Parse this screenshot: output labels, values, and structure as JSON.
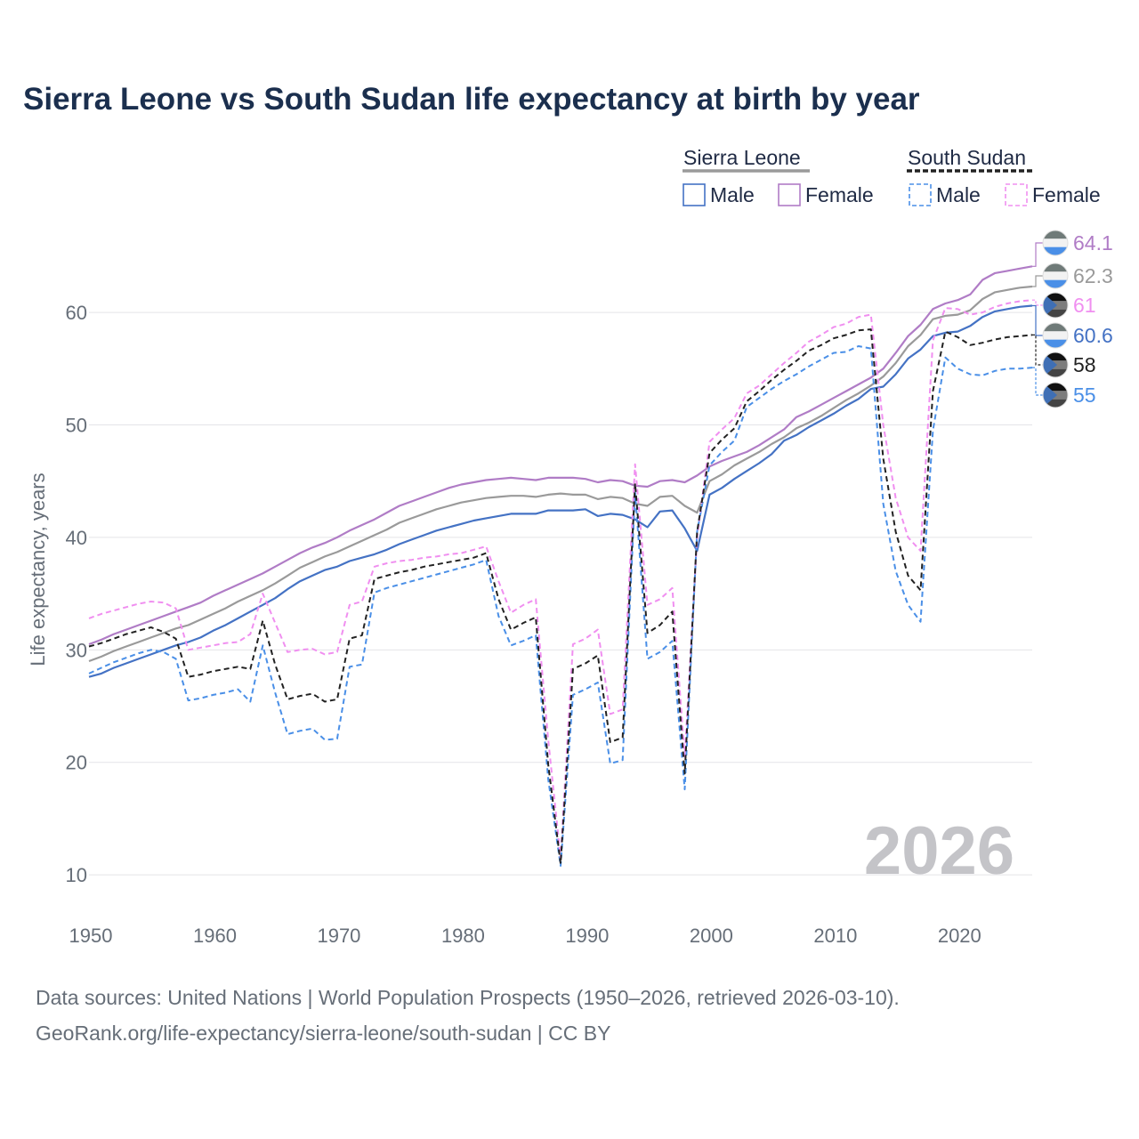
{
  "title": "Sierra Leone vs South Sudan life expectancy at birth by year",
  "footer": {
    "line1": "Data sources: United Nations | World Population Prospects (1950–2026, retrieved 2026-03-10).",
    "line2": "GeoRank.org/life-expectancy/sierra-leone/south-sudan | CC BY"
  },
  "legend": {
    "groups": [
      {
        "country": "Sierra Leone",
        "color": "#9a9a9a",
        "dashed": false,
        "items": [
          {
            "label": "Male",
            "color": "#4472c4"
          },
          {
            "label": "Female",
            "color": "#b07cc6"
          }
        ]
      },
      {
        "country": "South Sudan",
        "color": "#222222",
        "dashed": true,
        "items": [
          {
            "label": "Male",
            "color": "#4a8fe7"
          },
          {
            "label": "Female",
            "color": "#f08ff0"
          }
        ]
      }
    ]
  },
  "chart_data": {
    "type": "line",
    "title": "Sierra Leone vs South Sudan life expectancy at birth by year",
    "xlabel": "",
    "ylabel": "Life expectancy, years",
    "xlim": [
      1950,
      2026
    ],
    "ylim": [
      5.5,
      68
    ],
    "xticks": [
      1950,
      1960,
      1970,
      1980,
      1990,
      2000,
      2010,
      2020
    ],
    "yticks": [
      10,
      20,
      30,
      40,
      50,
      60
    ],
    "watermark": "2026",
    "x": [
      1950,
      1951,
      1952,
      1953,
      1954,
      1955,
      1956,
      1957,
      1958,
      1959,
      1960,
      1961,
      1962,
      1963,
      1964,
      1965,
      1966,
      1967,
      1968,
      1969,
      1970,
      1971,
      1972,
      1973,
      1974,
      1975,
      1976,
      1977,
      1978,
      1979,
      1980,
      1981,
      1982,
      1983,
      1984,
      1985,
      1986,
      1987,
      1988,
      1989,
      1990,
      1991,
      1992,
      1993,
      1994,
      1995,
      1996,
      1997,
      1998,
      1999,
      2000,
      2001,
      2002,
      2003,
      2004,
      2005,
      2006,
      2007,
      2008,
      2009,
      2010,
      2011,
      2012,
      2013,
      2014,
      2015,
      2016,
      2017,
      2018,
      2019,
      2020,
      2021,
      2022,
      2023,
      2024,
      2025,
      2026
    ],
    "series": [
      {
        "name": "Sierra Leone Female",
        "color": "#b07cc6",
        "dashed": false,
        "end_label": "64.1",
        "values": [
          30.5,
          30.9,
          31.4,
          31.8,
          32.2,
          32.6,
          33.0,
          33.4,
          33.8,
          34.2,
          34.8,
          35.3,
          35.8,
          36.3,
          36.8,
          37.4,
          38.0,
          38.6,
          39.1,
          39.5,
          40.0,
          40.6,
          41.1,
          41.6,
          42.2,
          42.8,
          43.2,
          43.6,
          44.0,
          44.4,
          44.7,
          44.9,
          45.1,
          45.2,
          45.3,
          45.2,
          45.1,
          45.3,
          45.3,
          45.3,
          45.2,
          44.9,
          45.1,
          45.0,
          44.6,
          44.5,
          45.0,
          45.1,
          44.9,
          45.5,
          46.3,
          46.8,
          47.2,
          47.6,
          48.2,
          48.9,
          49.6,
          50.7,
          51.2,
          51.8,
          52.4,
          53.0,
          53.6,
          54.2,
          55.0,
          56.4,
          57.9,
          58.9,
          60.3,
          60.8,
          61.1,
          61.6,
          62.9,
          63.5,
          63.7,
          63.9,
          64.1
        ]
      },
      {
        "name": "Sierra Leone Total",
        "color": "#9a9a9a",
        "dashed": false,
        "end_label": "62.3",
        "values": [
          29.0,
          29.4,
          29.9,
          30.3,
          30.7,
          31.1,
          31.5,
          31.9,
          32.2,
          32.7,
          33.2,
          33.7,
          34.3,
          34.8,
          35.3,
          35.9,
          36.6,
          37.3,
          37.8,
          38.3,
          38.7,
          39.2,
          39.7,
          40.2,
          40.7,
          41.3,
          41.7,
          42.1,
          42.5,
          42.8,
          43.1,
          43.3,
          43.5,
          43.6,
          43.7,
          43.7,
          43.6,
          43.8,
          43.9,
          43.8,
          43.8,
          43.4,
          43.6,
          43.5,
          43.0,
          42.8,
          43.6,
          43.7,
          42.8,
          42.2,
          45.0,
          45.6,
          46.4,
          47.0,
          47.6,
          48.3,
          48.9,
          49.7,
          50.2,
          50.8,
          51.5,
          52.2,
          52.8,
          53.5,
          54.3,
          55.5,
          57.0,
          58.0,
          59.4,
          59.7,
          59.8,
          60.2,
          61.2,
          61.8,
          62.0,
          62.2,
          62.3
        ]
      },
      {
        "name": "Sierra Leone Male",
        "color": "#4472c4",
        "dashed": false,
        "end_label": "60.6",
        "values": [
          27.6,
          27.9,
          28.4,
          28.8,
          29.2,
          29.6,
          30.0,
          30.4,
          30.7,
          31.1,
          31.7,
          32.2,
          32.8,
          33.4,
          34.0,
          34.6,
          35.4,
          36.1,
          36.6,
          37.1,
          37.4,
          37.9,
          38.2,
          38.5,
          38.9,
          39.4,
          39.8,
          40.2,
          40.6,
          40.9,
          41.2,
          41.5,
          41.7,
          41.9,
          42.1,
          42.1,
          42.1,
          42.4,
          42.4,
          42.4,
          42.5,
          41.9,
          42.1,
          42.0,
          41.6,
          40.9,
          42.3,
          42.4,
          40.8,
          38.8,
          43.8,
          44.4,
          45.2,
          45.9,
          46.6,
          47.4,
          48.6,
          49.1,
          49.8,
          50.4,
          51.0,
          51.7,
          52.3,
          53.2,
          53.4,
          54.5,
          55.9,
          56.7,
          57.9,
          58.2,
          58.3,
          58.8,
          59.6,
          60.1,
          60.3,
          60.5,
          60.6
        ]
      },
      {
        "name": "South Sudan Female",
        "color": "#f08ff0",
        "dashed": true,
        "end_label": "61",
        "values": [
          32.8,
          33.2,
          33.5,
          33.8,
          34.1,
          34.3,
          34.2,
          33.7,
          30.0,
          30.2,
          30.4,
          30.6,
          30.7,
          31.4,
          35.0,
          32.4,
          29.8,
          30.0,
          30.1,
          29.6,
          29.8,
          34.0,
          34.3,
          37.4,
          37.7,
          37.9,
          38.0,
          38.2,
          38.3,
          38.5,
          38.6,
          38.9,
          39.2,
          36.1,
          33.3,
          34.0,
          34.5,
          22.0,
          11.5,
          30.5,
          31.0,
          31.8,
          24.3,
          24.7,
          46.5,
          34.0,
          34.5,
          35.5,
          20.5,
          40.0,
          48.5,
          49.6,
          50.6,
          52.8,
          53.5,
          54.5,
          55.5,
          56.4,
          57.4,
          58.0,
          58.7,
          59.0,
          59.6,
          59.8,
          50.0,
          43.5,
          40.0,
          38.8,
          57.5,
          60.4,
          60.3,
          59.8,
          60.0,
          60.5,
          60.8,
          61.0,
          61.1
        ]
      },
      {
        "name": "South Sudan Total",
        "color": "#222222",
        "dashed": true,
        "end_label": "58",
        "values": [
          30.3,
          30.6,
          31.0,
          31.4,
          31.7,
          32.0,
          31.6,
          31.0,
          27.6,
          27.8,
          28.1,
          28.3,
          28.5,
          28.3,
          32.6,
          28.7,
          25.6,
          25.9,
          26.1,
          25.4,
          25.6,
          31.0,
          31.3,
          36.3,
          36.6,
          36.9,
          37.1,
          37.4,
          37.6,
          37.8,
          38.0,
          38.2,
          38.6,
          34.5,
          31.8,
          32.4,
          32.9,
          19.8,
          11.0,
          28.3,
          28.8,
          29.5,
          21.8,
          22.2,
          44.8,
          31.5,
          32.2,
          33.4,
          19.0,
          40.5,
          47.5,
          48.7,
          49.7,
          52.1,
          53.0,
          54.0,
          54.9,
          55.7,
          56.6,
          57.1,
          57.7,
          58.0,
          58.4,
          58.5,
          47.0,
          40.5,
          36.6,
          35.3,
          53.0,
          58.3,
          57.8,
          57.1,
          57.3,
          57.6,
          57.8,
          57.9,
          58.0
        ]
      },
      {
        "name": "South Sudan Male",
        "color": "#4a8fe7",
        "dashed": true,
        "end_label": "55",
        "values": [
          27.9,
          28.4,
          28.9,
          29.3,
          29.7,
          30.0,
          29.8,
          29.2,
          25.5,
          25.7,
          26.0,
          26.2,
          26.5,
          25.4,
          30.4,
          26.2,
          22.5,
          22.8,
          23.0,
          22.0,
          22.1,
          28.5,
          28.7,
          35.1,
          35.5,
          35.8,
          36.1,
          36.4,
          36.7,
          37.0,
          37.3,
          37.6,
          38.0,
          33.0,
          30.4,
          30.8,
          31.3,
          18.5,
          10.8,
          26.0,
          26.5,
          27.1,
          19.9,
          20.2,
          44.0,
          29.2,
          29.8,
          30.8,
          17.6,
          40.5,
          46.4,
          47.6,
          48.6,
          51.6,
          52.4,
          53.2,
          53.9,
          54.5,
          55.2,
          55.8,
          56.4,
          56.5,
          57.0,
          56.8,
          43.0,
          37.0,
          34.0,
          32.5,
          49.5,
          56.0,
          55.0,
          54.5,
          54.4,
          54.8,
          55.0,
          55.0,
          55.1
        ]
      }
    ]
  }
}
